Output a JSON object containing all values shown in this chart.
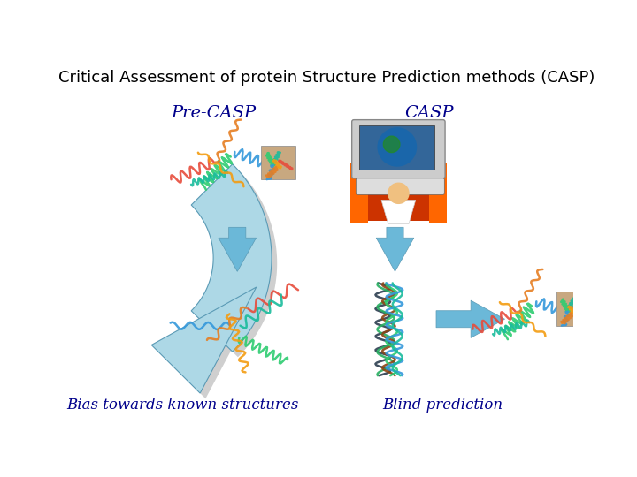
{
  "title": "Critical Assessment of protein Structure Prediction methods (CASP)",
  "title_fontsize": 13,
  "title_color": "#000000",
  "title_font": "DejaVu Sans",
  "label_pre_casp": "Pre-CASP",
  "label_casp": "CASP",
  "label_bias": "Bias towards known structures",
  "label_blind": "Blind prediction",
  "label_color": "#00008B",
  "label_fontsize": 12,
  "bg_color": "#ffffff",
  "arrow_color": "#87CEEB",
  "arrow_dark": "#a0b8c8"
}
